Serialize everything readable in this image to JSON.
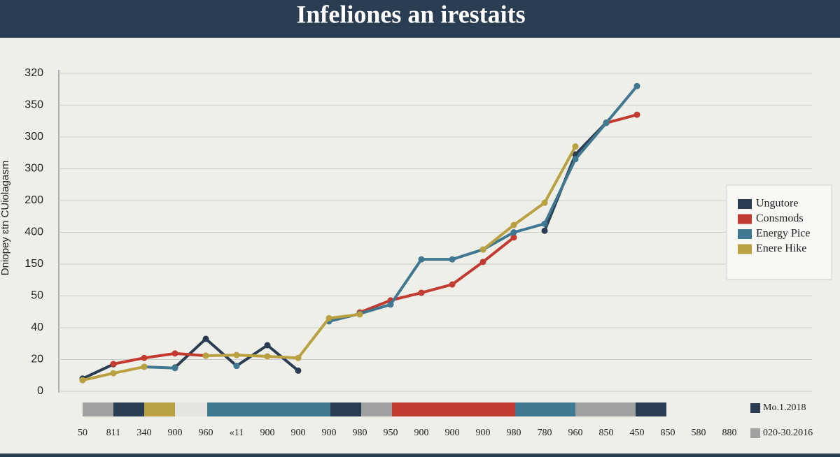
{
  "chart_data": {
    "type": "line",
    "title": "Infeliones an irestaits",
    "y_label": "Dniopey ɛtn CUiolagasm",
    "categories": [
      "50",
      "811",
      "340",
      "900",
      "960",
      "«11",
      "900",
      "900",
      "900",
      "980",
      "950",
      "900",
      "900",
      "900",
      "980",
      "780",
      "960",
      "850",
      "450",
      "850",
      "580",
      "880"
    ],
    "series": [
      {
        "name": "Ungutore",
        "color": "#2b3d52",
        "values": [
          0.4,
          0.85,
          null,
          0.75,
          1.65,
          0.8,
          1.45,
          0.65,
          null,
          null,
          null,
          null,
          null,
          null,
          null,
          5.05,
          7.45,
          8.45,
          null,
          null,
          null,
          null
        ]
      },
      {
        "name": "Consmods",
        "color": "#c23a30",
        "values": [
          null,
          0.86,
          1.05,
          1.19,
          1.12,
          null,
          null,
          null,
          null,
          2.48,
          2.86,
          3.1,
          3.36,
          4.07,
          4.84,
          null,
          null,
          8.44,
          8.7,
          null,
          null,
          null
        ]
      },
      {
        "name": "Energy Pice",
        "color": "#3f7890",
        "values": [
          null,
          null,
          0.77,
          0.73,
          null,
          0.8,
          null,
          null,
          2.2,
          2.44,
          2.73,
          4.15,
          4.15,
          4.46,
          5.0,
          5.27,
          7.3,
          8.44,
          9.6,
          null,
          null,
          null
        ]
      },
      {
        "name": "Enere Hike",
        "color": "#b9a040",
        "values": [
          0.35,
          0.57,
          0.77,
          null,
          1.12,
          1.14,
          1.1,
          1.05,
          2.3,
          2.42,
          null,
          null,
          null,
          4.46,
          5.23,
          5.93,
          7.7,
          null,
          null,
          null,
          null,
          null
        ]
      }
    ],
    "ylim": [
      0,
      10
    ],
    "yticks": [
      {
        "value": 0,
        "label": "0"
      },
      {
        "value": 1,
        "label": "20"
      },
      {
        "value": 2,
        "label": "40"
      },
      {
        "value": 3,
        "label": "50"
      },
      {
        "value": 4,
        "label": "150"
      },
      {
        "value": 5,
        "label": "400"
      },
      {
        "value": 6,
        "label": "200"
      },
      {
        "value": 7,
        "label": "300"
      },
      {
        "value": 8,
        "label": "300"
      },
      {
        "value": 9,
        "label": "350"
      },
      {
        "value": 10,
        "label": "320"
      }
    ],
    "grid": true,
    "legend": "right",
    "bottom_legend": [
      {
        "label": "Mo.1.2018",
        "color": "#2b3d52"
      },
      {
        "label": "020-30.2016",
        "color": "#a0a0a0"
      }
    ]
  }
}
